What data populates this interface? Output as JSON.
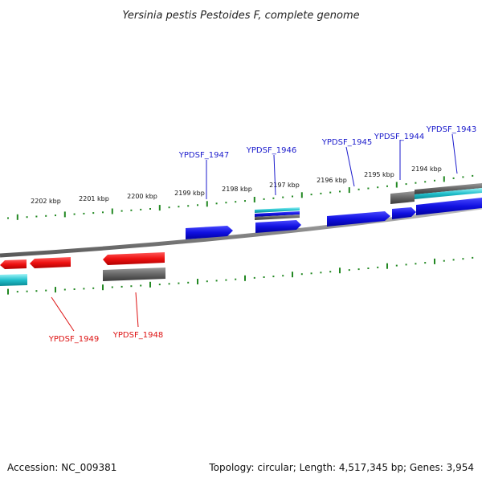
{
  "title": "Yersinia pestis Pestoides F, complete genome",
  "footer": {
    "accession": "Accession: NC_009381",
    "summary": "Topology: circular; Length: 4,517,345 bp; Genes: 3,954"
  },
  "scale_labels": [
    "2202 kbp",
    "2201 kbp",
    "2200 kbp",
    "2199 kbp",
    "2198 kbp",
    "2197 kbp",
    "2196 kbp",
    "2195 kbp",
    "2194 kbp"
  ],
  "genes_forward": [
    "YPDSF_1947",
    "YPDSF_1946",
    "YPDSF_1945",
    "YPDSF_1944",
    "YPDSF_1943"
  ],
  "genes_reverse": [
    "YPDSF_1949",
    "YPDSF_1948"
  ],
  "colors": {
    "forward_cds": "#1010e0",
    "reverse_cds": "#ee1111",
    "gene": "#666666",
    "rna": "#22c0cc",
    "backbone": "#8a8a8a",
    "ticks": "#228822",
    "forward_label": "#1a1acc",
    "reverse_label": "#dd1111"
  }
}
